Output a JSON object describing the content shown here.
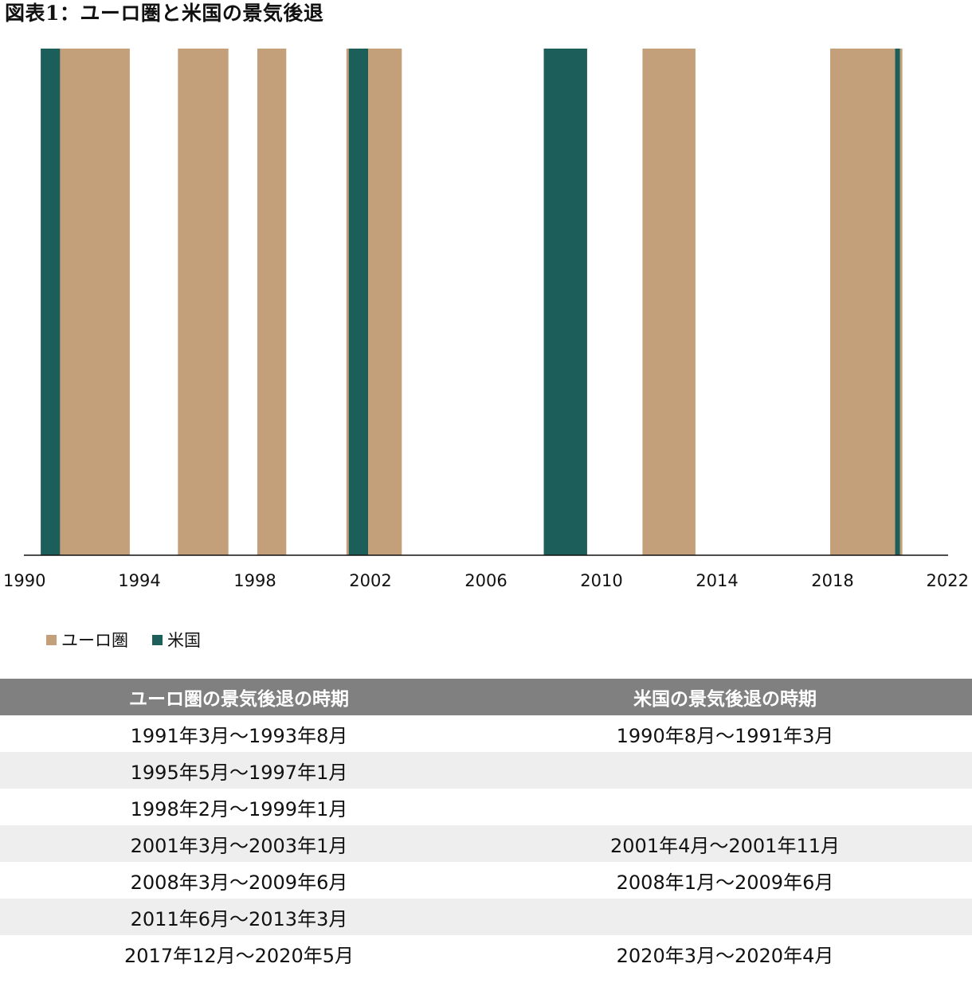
{
  "title": "図表1：ユーロ圏と米国の景気後退",
  "colors": {
    "euro": "#c4a07a",
    "us": "#1c5e5a",
    "header_bg": "#808080",
    "alt_row": "#eeeeee"
  },
  "chart_data": {
    "type": "area",
    "xlim": [
      1990,
      2022
    ],
    "x_ticks": [
      "1990",
      "1994",
      "1998",
      "2002",
      "2006",
      "2010",
      "2014",
      "2018",
      "2022"
    ],
    "legend_position": "bottom-left",
    "grid": false,
    "series": [
      {
        "name": "ユーロ圏",
        "color": "#c4a07a",
        "periods": [
          {
            "start": "1991-03",
            "end": "1993-08"
          },
          {
            "start": "1995-05",
            "end": "1997-01"
          },
          {
            "start": "1998-02",
            "end": "1999-01"
          },
          {
            "start": "2001-03",
            "end": "2003-01"
          },
          {
            "start": "2008-03",
            "end": "2009-06"
          },
          {
            "start": "2011-06",
            "end": "2013-03"
          },
          {
            "start": "2017-12",
            "end": "2020-05"
          }
        ]
      },
      {
        "name": "米国",
        "color": "#1c5e5a",
        "periods": [
          {
            "start": "1990-08",
            "end": "1991-03"
          },
          {
            "start": "2001-04",
            "end": "2001-11"
          },
          {
            "start": "2008-01",
            "end": "2009-06"
          },
          {
            "start": "2020-03",
            "end": "2020-04"
          }
        ]
      }
    ]
  },
  "legend": [
    {
      "label": "ユーロ圏",
      "color": "#c4a07a"
    },
    {
      "label": "米国",
      "color": "#1c5e5a"
    }
  ],
  "table": {
    "headers": [
      "ユーロ圏の景気後退の時期",
      "米国の景気後退の時期"
    ],
    "rows": [
      [
        "1991年3月～1993年8月",
        "1990年8月～1991年3月"
      ],
      [
        "1995年5月～1997年1月",
        ""
      ],
      [
        "1998年2月～1999年1月",
        ""
      ],
      [
        "2001年3月～2003年1月",
        "2001年4月～2001年11月"
      ],
      [
        "2008年3月～2009年6月",
        "2008年1月～2009年6月"
      ],
      [
        "2011年6月～2013年3月",
        ""
      ],
      [
        "2017年12月～2020年5月",
        "2020年3月～2020年4月"
      ]
    ]
  }
}
